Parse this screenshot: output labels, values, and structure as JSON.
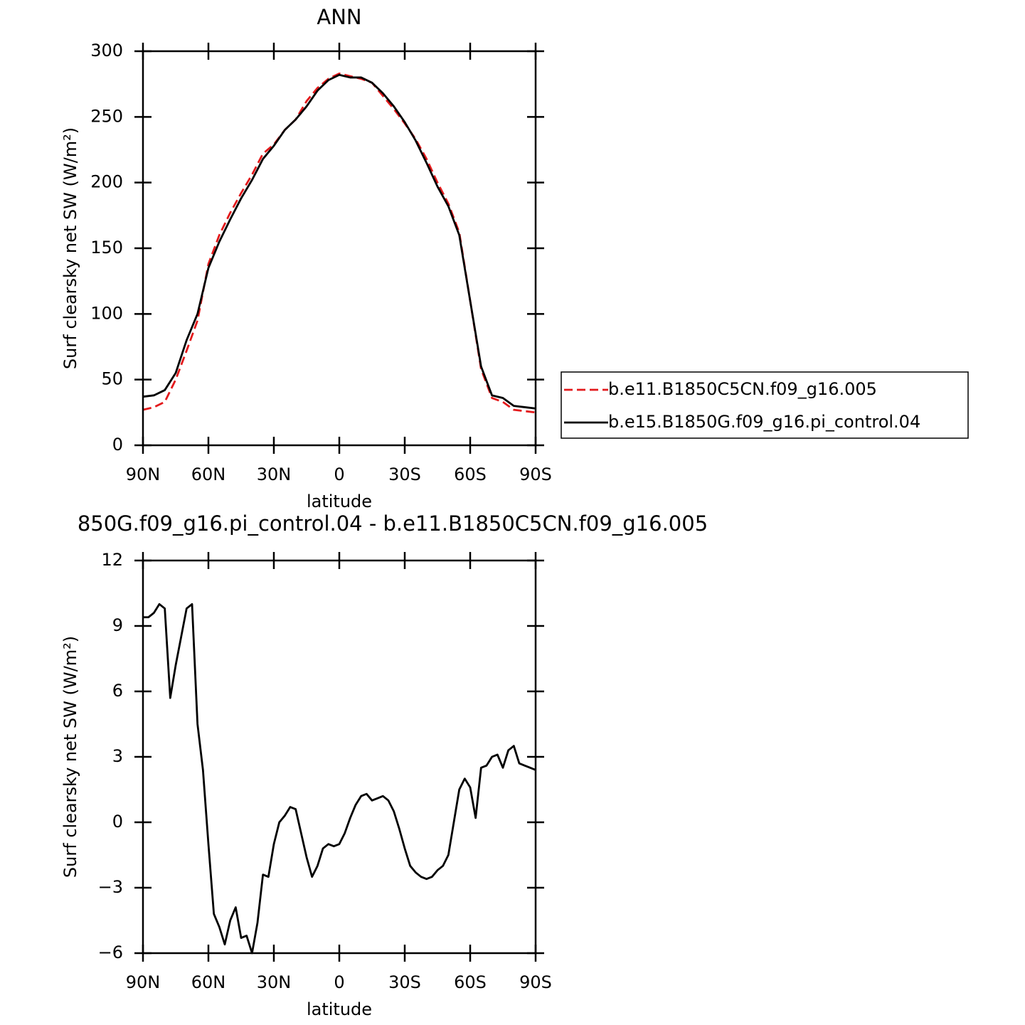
{
  "chart_data": [
    {
      "type": "line",
      "title": "ANN",
      "xlabel": "latitude",
      "ylabel": "Surf clearsky net SW (W/m²)",
      "x": [
        90,
        85,
        80,
        75,
        70,
        65,
        60,
        55,
        50,
        45,
        40,
        35,
        30,
        25,
        20,
        15,
        10,
        5,
        0,
        -5,
        -10,
        -15,
        -20,
        -25,
        -30,
        -35,
        -40,
        -45,
        -50,
        -55,
        -60,
        -65,
        -70,
        -75,
        -80,
        -85,
        -90
      ],
      "series": [
        {
          "name": "b.e11.B1850C5CN.f09_g16.005",
          "color": "#e31a1c",
          "dash": true,
          "values": [
            27,
            29,
            33,
            50,
            72,
            95,
            138,
            160,
            177,
            192,
            206,
            222,
            229,
            240,
            248,
            262,
            272,
            279,
            283,
            281,
            279,
            276,
            266,
            256,
            245,
            233,
            218,
            200,
            184,
            162,
            110,
            58,
            36,
            33,
            27,
            26,
            25
          ]
        },
        {
          "name": "b.e15.B1850G.f09_g16.pi_control.04",
          "color": "#000000",
          "dash": false,
          "values": [
            37,
            38,
            42,
            55,
            80,
            100,
            135,
            155,
            172,
            188,
            202,
            218,
            228,
            240,
            248,
            258,
            270,
            278,
            282,
            280,
            280,
            276,
            268,
            258,
            246,
            232,
            215,
            197,
            182,
            160,
            110,
            60,
            38,
            36,
            30,
            29,
            28
          ]
        }
      ],
      "xlim": [
        90,
        -90
      ],
      "xticks": [
        {
          "value": 90,
          "label": "90N"
        },
        {
          "value": 60,
          "label": "60N"
        },
        {
          "value": 30,
          "label": "30N"
        },
        0,
        {
          "value": -30,
          "label": "30S"
        },
        {
          "value": -60,
          "label": "60S"
        },
        {
          "value": -90,
          "label": "90S"
        }
      ],
      "ylim": [
        0,
        300
      ],
      "yticks": [
        0,
        50,
        100,
        150,
        200,
        250,
        300
      ],
      "legend": "right"
    },
    {
      "type": "line",
      "title": "850G.f09_g16.pi_control.04 - b.e11.B1850C5CN.f09_g16.005",
      "xlabel": "latitude",
      "ylabel": "Surf clearsky net SW (W/m²)",
      "x": [
        90,
        87.5,
        85,
        82.5,
        80,
        77.5,
        75,
        72.5,
        70,
        67.5,
        65,
        62.5,
        60,
        57.5,
        55,
        52.5,
        50,
        47.5,
        45,
        42.5,
        40,
        37.5,
        35,
        32.5,
        30,
        27.5,
        25,
        22.5,
        20,
        17.5,
        15,
        12.5,
        10,
        7.5,
        5,
        2.5,
        0,
        -2.5,
        -5,
        -7.5,
        -10,
        -12.5,
        -15,
        -17.5,
        -20,
        -22.5,
        -25,
        -27.5,
        -30,
        -32.5,
        -35,
        -37.5,
        -40,
        -42.5,
        -45,
        -47.5,
        -50,
        -52.5,
        -55,
        -57.5,
        -60,
        -62.5,
        -65,
        -67.5,
        -70,
        -72.5,
        -75,
        -77.5,
        -80,
        -82.5,
        -85,
        -87.5,
        -90
      ],
      "series": [
        {
          "name": null,
          "color": "#000000",
          "dash": false,
          "values": [
            9.4,
            9.4,
            9.6,
            10.0,
            9.8,
            5.7,
            7.2,
            8.5,
            9.8,
            10.0,
            4.5,
            2.4,
            -1.0,
            -4.2,
            -4.8,
            -5.6,
            -4.5,
            -3.9,
            -5.3,
            -5.2,
            -6.0,
            -4.6,
            -2.4,
            -2.5,
            -1.0,
            0.0,
            0.3,
            0.7,
            0.6,
            -0.5,
            -1.6,
            -2.5,
            -2.0,
            -1.2,
            -1.0,
            -1.1,
            -1.0,
            -0.5,
            0.2,
            0.8,
            1.2,
            1.3,
            1.0,
            1.1,
            1.2,
            1.0,
            0.5,
            -0.3,
            -1.2,
            -2.0,
            -2.3,
            -2.5,
            -2.6,
            -2.5,
            -2.2,
            -2.0,
            -1.5,
            0.0,
            1.5,
            2.0,
            1.6,
            0.2,
            2.5,
            2.6,
            3.0,
            3.1,
            2.5,
            3.3,
            3.5,
            2.7,
            2.6,
            2.5,
            2.4
          ]
        }
      ],
      "xlim": [
        90,
        -90
      ],
      "xticks": [
        {
          "value": 90,
          "label": "90N"
        },
        {
          "value": 60,
          "label": "60N"
        },
        {
          "value": 30,
          "label": "30N"
        },
        0,
        {
          "value": -30,
          "label": "30S"
        },
        {
          "value": -60,
          "label": "60S"
        },
        {
          "value": -90,
          "label": "90S"
        }
      ],
      "ylim": [
        -6,
        12
      ],
      "yticks": [
        {
          "value": -6,
          "label": "−6"
        },
        {
          "value": -3,
          "label": "−3"
        },
        0,
        3,
        6,
        9,
        12
      ]
    }
  ]
}
